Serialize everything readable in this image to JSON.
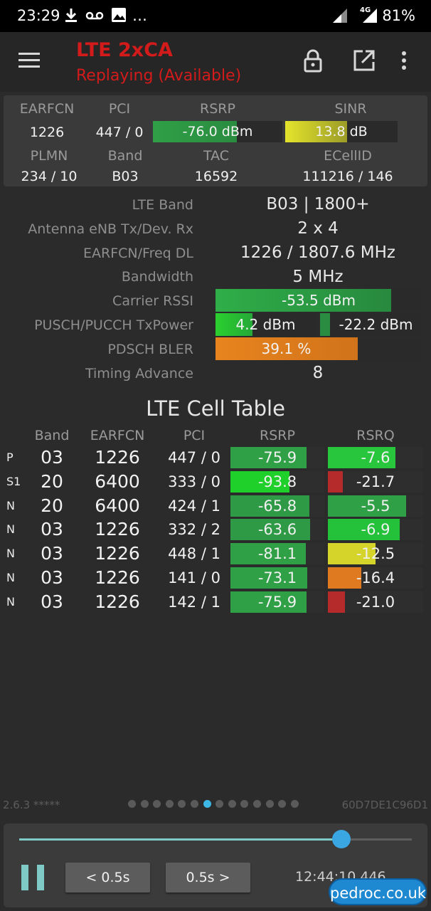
{
  "status_bar": {
    "time": "23:29",
    "more": "…",
    "network": "4G",
    "battery": "81%"
  },
  "app_bar": {
    "title": "LTE 2xCA",
    "subtitle": "Replaying (Available)",
    "icons": [
      "menu-icon",
      "lock-icon",
      "open-external-icon",
      "more-vert-icon"
    ]
  },
  "summary": {
    "headers": {
      "earfcn": "EARFCN",
      "pci": "PCI",
      "rsrp": "RSRP",
      "sinr": "SINR",
      "plmn": "PLMN",
      "band": "Band",
      "tac": "TAC",
      "ecellid": "ECellID"
    },
    "earfcn": "1226",
    "pci": "447 / 0",
    "rsrp": {
      "text": "-76.0 dBm",
      "level": 0.65
    },
    "sinr": {
      "text": "13.8 dB",
      "level": 0.55
    },
    "plmn": "234 / 10",
    "band": "B03",
    "tac": "16592",
    "ecellid": "111216 / 146"
  },
  "details": {
    "lte_band": {
      "label": "LTE Band",
      "value": "B03 | 1800+"
    },
    "antenna": {
      "label": "Antenna eNB Tx/Dev. Rx",
      "value": "2 x 4"
    },
    "earfcn_freq": {
      "label": "EARFCN/Freq DL",
      "value": "1226 / 1807.6 MHz"
    },
    "bandwidth": {
      "label": "Bandwidth",
      "value": "5 MHz"
    },
    "carrier_rssi": {
      "label": "Carrier RSSI",
      "value": "-53.5 dBm",
      "level": 0.85
    },
    "tx_power": {
      "label": "PUSCH/PUCCH TxPower",
      "pusch": "4.2 dBm",
      "pusch_level": 0.37,
      "pucch": "-22.2 dBm",
      "pucch_level": 0.1
    },
    "pdsch_bler": {
      "label": "PDSCH BLER",
      "value": "39.1 %",
      "level": 0.69
    },
    "timing_advance": {
      "label": "Timing Advance",
      "value": "8"
    }
  },
  "cell_table": {
    "title": "LTE Cell Table",
    "headers": {
      "band": "Band",
      "earfcn": "EARFCN",
      "pci": "PCI",
      "rsrp": "RSRP",
      "rsrq": "RSRQ"
    },
    "rows": [
      {
        "type": "P",
        "band": "03",
        "earfcn": "1226",
        "pci": "447 / 0",
        "rsrp": "-75.9",
        "rsrp_level": 0.81,
        "rsrp_color": "#2fa045",
        "rsrq": "-7.6",
        "rsrq_level": 0.71,
        "rsrq_color": "#27c63c"
      },
      {
        "type": "S1",
        "band": "20",
        "earfcn": "6400",
        "pci": "333 / 0",
        "rsrp": "-93.8",
        "rsrp_level": 0.63,
        "rsrp_color": "#1fd02a",
        "rsrq": "-21.7",
        "rsrq_level": 0.16,
        "rsrq_color": "#b52a2a"
      },
      {
        "type": "N",
        "band": "20",
        "earfcn": "6400",
        "pci": "424 / 1",
        "rsrp": "-65.8",
        "rsrp_level": 0.84,
        "rsrp_color": "#2e9a46",
        "rsrq": "-5.5",
        "rsrq_level": 0.82,
        "rsrq_color": "#2fa045"
      },
      {
        "type": "N",
        "band": "03",
        "earfcn": "1226",
        "pci": "332 / 2",
        "rsrp": "-63.6",
        "rsrp_level": 0.85,
        "rsrp_color": "#2e9a46",
        "rsrq": "-6.9",
        "rsrq_level": 0.75,
        "rsrq_color": "#24c23a"
      },
      {
        "type": "N",
        "band": "03",
        "earfcn": "1226",
        "pci": "448 / 1",
        "rsrp": "-81.1",
        "rsrp_level": 0.8,
        "rsrp_color": "#2fa045",
        "rsrq": "-12.5",
        "rsrq_level": 0.5,
        "rsrq_color": "#d4d42a"
      },
      {
        "type": "N",
        "band": "03",
        "earfcn": "1226",
        "pci": "141 / 0",
        "rsrp": "-73.1",
        "rsrp_level": 0.82,
        "rsrp_color": "#2fa045",
        "rsrq": "-16.4",
        "rsrq_level": 0.35,
        "rsrq_color": "#e07a20"
      },
      {
        "type": "N",
        "band": "03",
        "earfcn": "1226",
        "pci": "142 / 1",
        "rsrp": "-75.9",
        "rsrp_level": 0.81,
        "rsrp_color": "#2fa045",
        "rsrq": "-21.0",
        "rsrq_level": 0.18,
        "rsrq_color": "#b52a2a"
      }
    ]
  },
  "footer": {
    "version": "2.6.3 *****",
    "device_id": "60D7DE1C96D1",
    "page_count": 14,
    "active_page": 6
  },
  "player": {
    "progress": 0.82,
    "back_label": "< 0.5s",
    "forward_label": "0.5s >",
    "timestamp": "12:44:10.446"
  },
  "watermark": "pedroc.co.uk",
  "colors": {
    "title_red": "#d31b1b",
    "accent_blue": "#3aa7e2",
    "seek_teal": "#7fc9c7"
  }
}
